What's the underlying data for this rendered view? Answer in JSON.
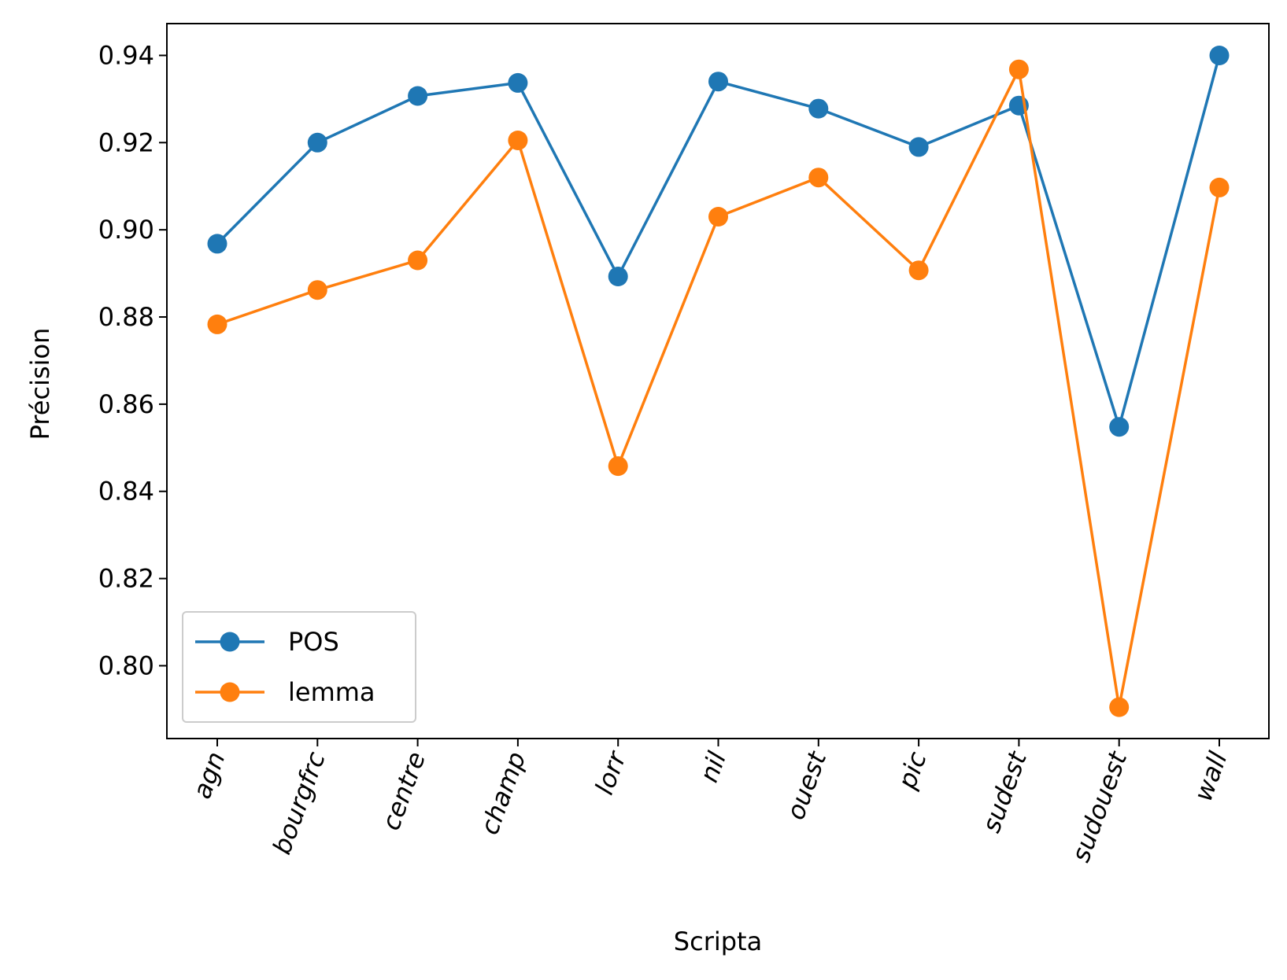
{
  "chart_data": {
    "type": "line",
    "title": "",
    "xlabel": "Scripta",
    "ylabel": "Précision",
    "categories": [
      "agn",
      "bourgfrc",
      "centre",
      "champ",
      "lorr",
      "nil",
      "ouest",
      "pic",
      "sudest",
      "sudouest",
      "wall"
    ],
    "y_ticks": [
      0.8,
      0.82,
      0.84,
      0.86,
      0.88,
      0.9,
      0.92,
      0.94
    ],
    "y_tick_labels": [
      "0.80",
      "0.82",
      "0.84",
      "0.86",
      "0.88",
      "0.90",
      "0.92",
      "0.94"
    ],
    "ylim": [
      0.7833,
      0.9473
    ],
    "grid": false,
    "legend_position": "lower-left",
    "series": [
      {
        "name": "POS",
        "color": "#1f77b4",
        "marker": "circle",
        "values": [
          0.8968,
          0.92,
          0.9307,
          0.9337,
          0.8893,
          0.934,
          0.9278,
          0.919,
          0.9285,
          0.8548,
          0.94
        ]
      },
      {
        "name": "lemma",
        "color": "#ff7f0e",
        "marker": "circle",
        "values": [
          0.8783,
          0.8862,
          0.893,
          0.9205,
          0.8458,
          0.903,
          0.912,
          0.8907,
          0.9368,
          0.7905,
          0.9097
        ]
      }
    ]
  }
}
